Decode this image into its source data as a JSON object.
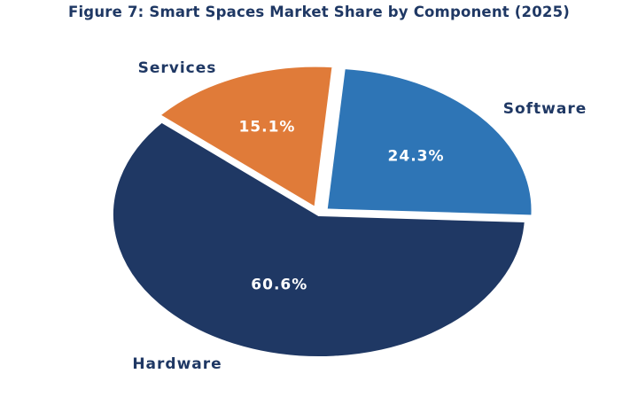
{
  "chart_data": {
    "type": "pie",
    "title": "Figure 7: Smart Spaces Market Share by Component (2025)",
    "slices": [
      {
        "label": "Software",
        "value": 24.3,
        "display": "24.3%",
        "color": "#2e75b6"
      },
      {
        "label": "Hardware",
        "value": 60.6,
        "display": "60.6%",
        "color": "#1f3864"
      },
      {
        "label": "Services",
        "value": 15.1,
        "display": "15.1%",
        "color": "#e07b39"
      }
    ],
    "legend": "none",
    "labels_outside": true
  }
}
